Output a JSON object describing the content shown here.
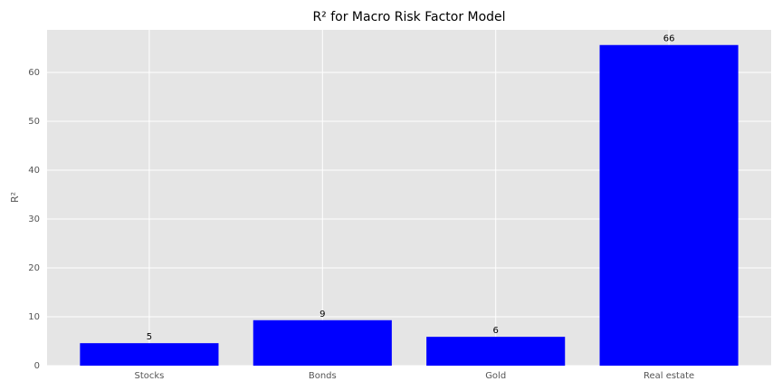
{
  "chart_data": {
    "type": "bar",
    "title": "R² for Macro Risk Factor Model",
    "y_label": "R²",
    "categories": [
      "Stocks",
      "Bonds",
      "Gold",
      "Real estate"
    ],
    "values": [
      4.6,
      9.3,
      5.9,
      65.6
    ],
    "value_labels": [
      "5",
      "9",
      "6",
      "66"
    ],
    "color": "#0000ff",
    "ylim": [
      0,
      68.7
    ],
    "yticks": [
      0,
      10,
      20,
      30,
      40,
      50,
      60
    ],
    "grid": true
  }
}
